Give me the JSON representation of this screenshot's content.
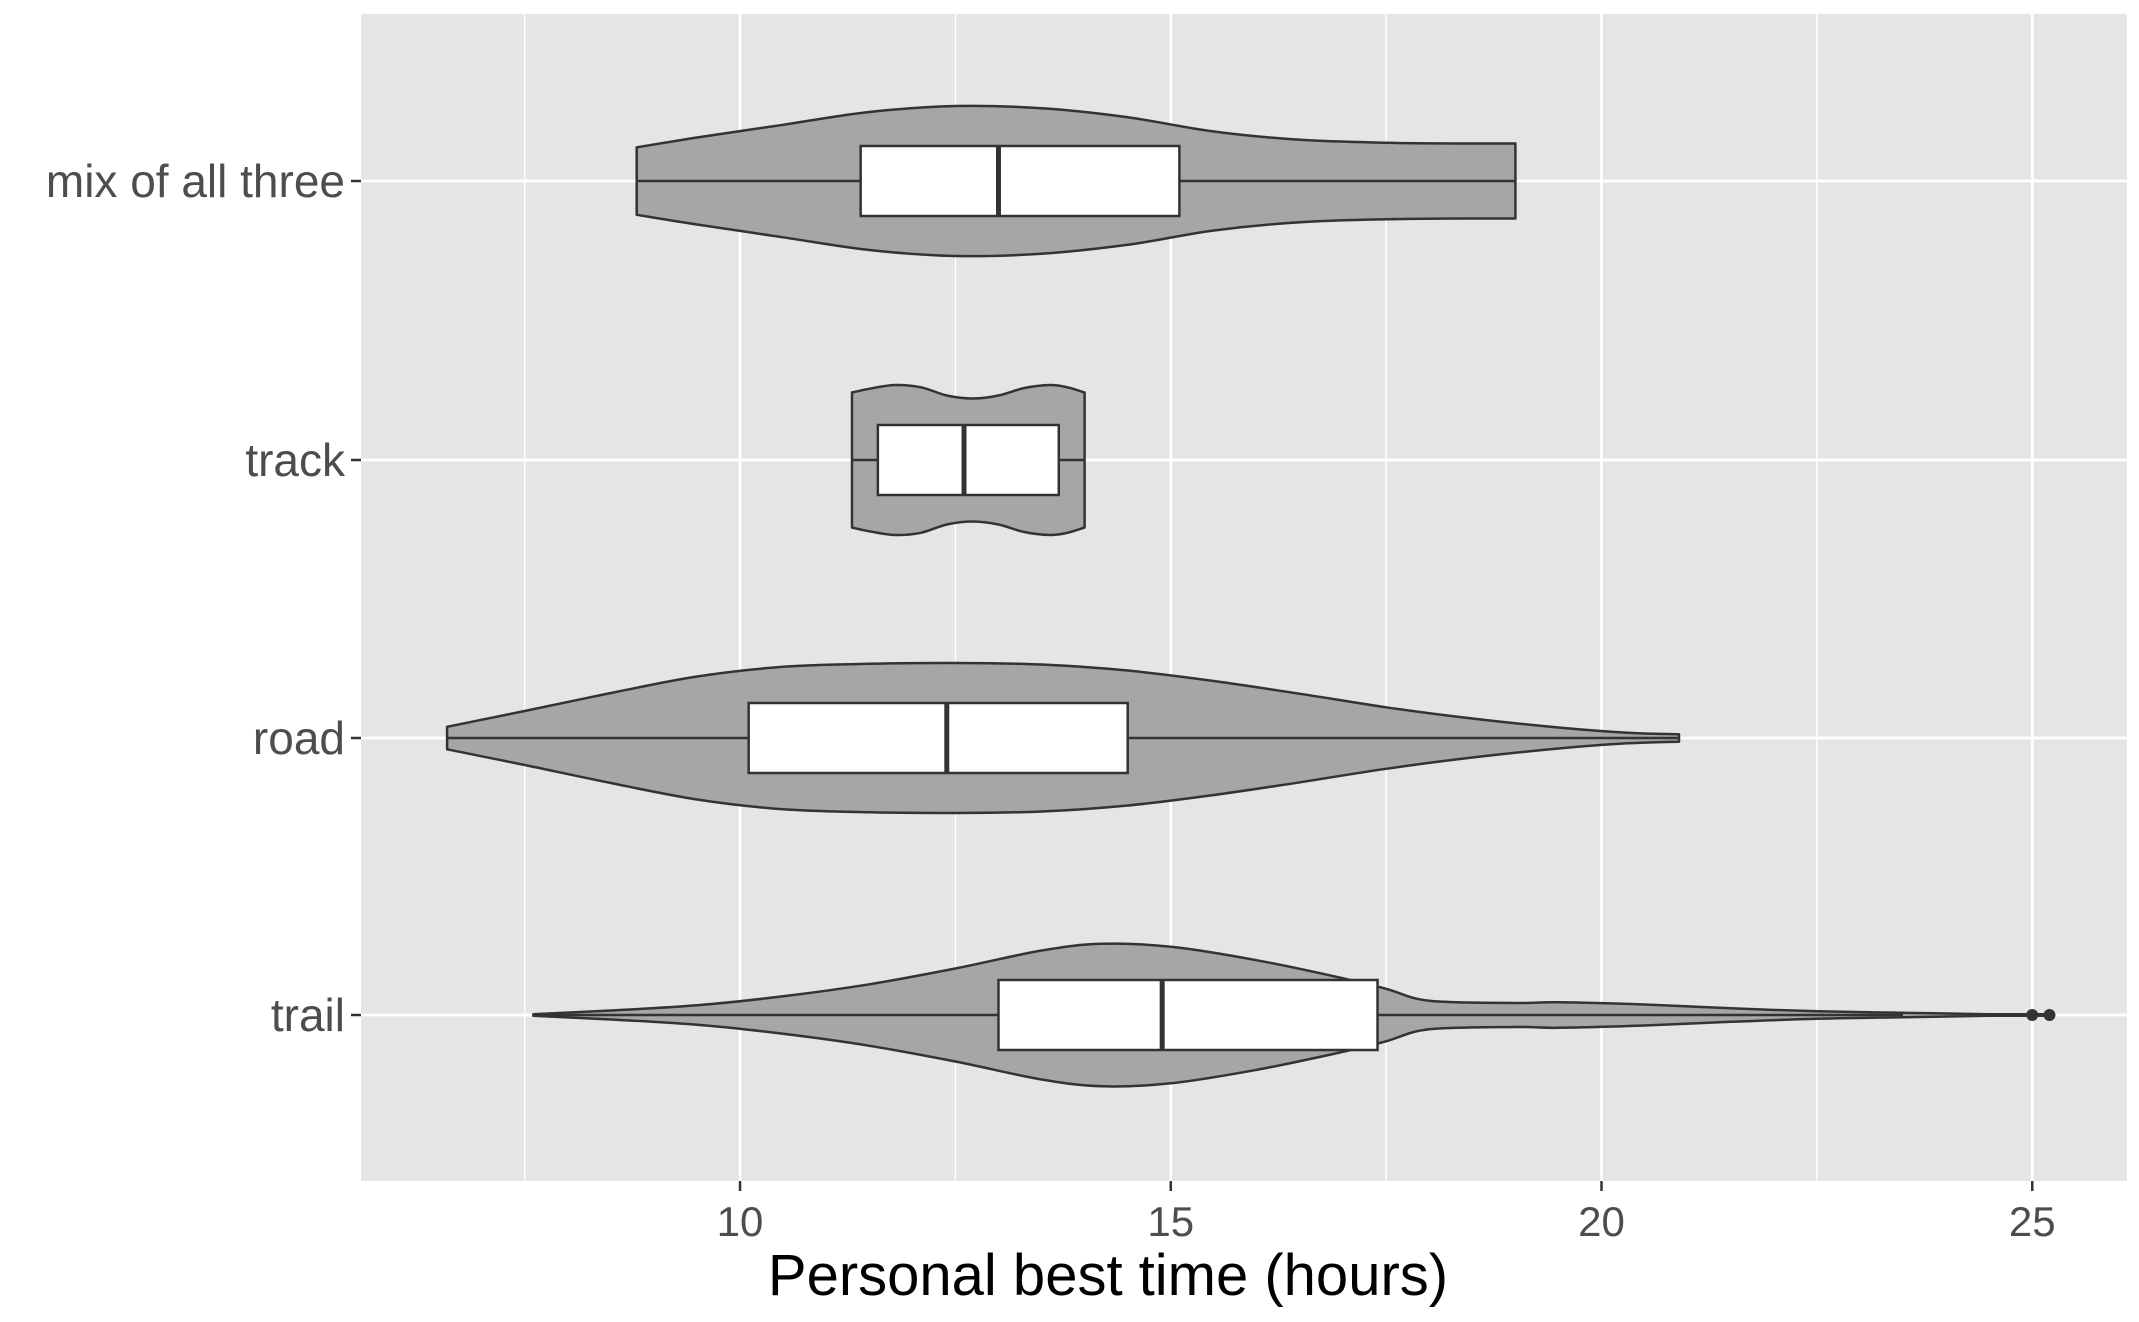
{
  "chart_data": {
    "type": "violin",
    "xlabel": "Personal best time (hours)",
    "ylabel": "",
    "xlim": [
      5.6,
      26.1
    ],
    "x_ticks": [
      10,
      15,
      20,
      25
    ],
    "categories": [
      "trail",
      "road",
      "track",
      "mix of all three"
    ],
    "grid": true,
    "colors": {
      "panel": "#e5e5e5",
      "grid_major": "#ffffff",
      "violin_fill": "#a6a6a6",
      "outline": "#333333",
      "box_fill": "#ffffff"
    },
    "groups": [
      {
        "category": "mix of all three",
        "box": {
          "q1": 11.4,
          "median": 13.0,
          "q3": 15.1,
          "whisker_low": 8.8,
          "whisker_high": 19.0
        },
        "outliers": [],
        "density": [
          [
            8.8,
            0.45
          ],
          [
            9.5,
            0.58
          ],
          [
            10.5,
            0.75
          ],
          [
            11.5,
            0.92
          ],
          [
            12.5,
            1.0
          ],
          [
            13.5,
            0.97
          ],
          [
            14.5,
            0.85
          ],
          [
            15.5,
            0.66
          ],
          [
            16.5,
            0.55
          ],
          [
            17.5,
            0.51
          ],
          [
            18.5,
            0.5
          ],
          [
            19.0,
            0.5
          ]
        ]
      },
      {
        "category": "track",
        "box": {
          "q1": 11.6,
          "median": 12.6,
          "q3": 13.7,
          "whisker_low": 11.3,
          "whisker_high": 14.0
        },
        "outliers": [],
        "density": [
          [
            11.3,
            0.9
          ],
          [
            11.5,
            0.95
          ],
          [
            11.8,
            1.0
          ],
          [
            12.1,
            0.97
          ],
          [
            12.4,
            0.86
          ],
          [
            12.7,
            0.82
          ],
          [
            13.0,
            0.86
          ],
          [
            13.3,
            0.96
          ],
          [
            13.6,
            1.0
          ],
          [
            13.8,
            0.97
          ],
          [
            14.0,
            0.9
          ]
        ]
      },
      {
        "category": "road",
        "box": {
          "q1": 10.1,
          "median": 12.4,
          "q3": 14.5,
          "whisker_low": 6.6,
          "whisker_high": 20.9
        },
        "outliers": [],
        "density": [
          [
            6.6,
            0.15
          ],
          [
            7.5,
            0.36
          ],
          [
            8.5,
            0.6
          ],
          [
            9.5,
            0.82
          ],
          [
            10.5,
            0.95
          ],
          [
            11.5,
            0.99
          ],
          [
            12.5,
            1.0
          ],
          [
            13.5,
            0.98
          ],
          [
            14.5,
            0.9
          ],
          [
            15.5,
            0.76
          ],
          [
            16.5,
            0.59
          ],
          [
            17.5,
            0.41
          ],
          [
            18.5,
            0.26
          ],
          [
            19.5,
            0.14
          ],
          [
            20.3,
            0.07
          ],
          [
            20.9,
            0.05
          ]
        ]
      },
      {
        "category": "trail",
        "box": {
          "q1": 13.0,
          "median": 14.9,
          "q3": 17.4,
          "whisker_low": 7.6,
          "whisker_high": 23.5
        },
        "outliers": [
          25.0,
          25.2
        ],
        "density": [
          [
            7.6,
            0.01
          ],
          [
            8.5,
            0.06
          ],
          [
            9.5,
            0.13
          ],
          [
            10.5,
            0.25
          ],
          [
            11.5,
            0.41
          ],
          [
            12.5,
            0.62
          ],
          [
            13.5,
            0.86
          ],
          [
            14.2,
            0.95
          ],
          [
            15.0,
            0.91
          ],
          [
            16.0,
            0.73
          ],
          [
            17.0,
            0.49
          ],
          [
            17.5,
            0.35
          ],
          [
            18.0,
            0.19
          ],
          [
            19.0,
            0.16
          ],
          [
            19.5,
            0.17
          ],
          [
            20.5,
            0.14
          ],
          [
            21.5,
            0.09
          ],
          [
            22.5,
            0.05
          ],
          [
            23.5,
            0.03
          ],
          [
            24.5,
            0.01
          ],
          [
            25.2,
            0.005
          ]
        ]
      }
    ]
  }
}
